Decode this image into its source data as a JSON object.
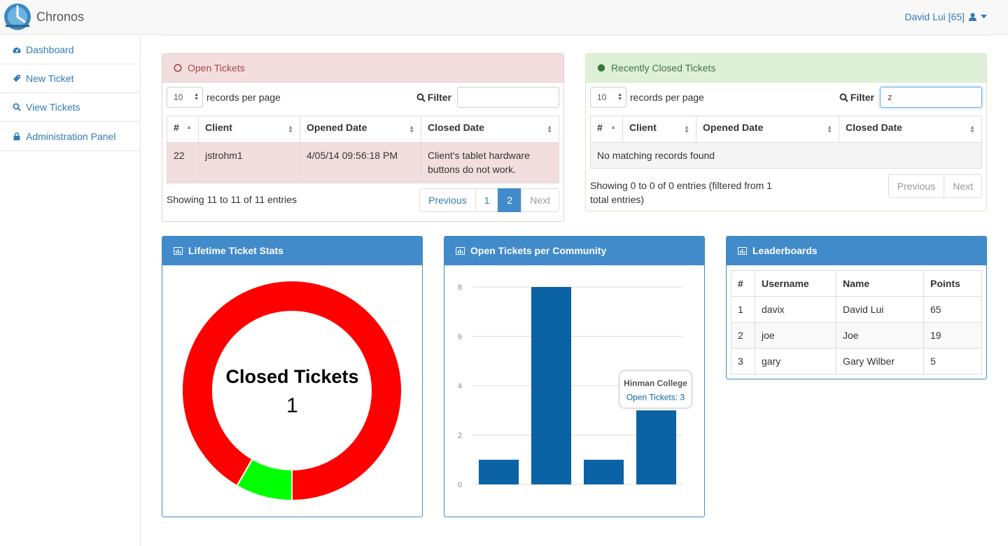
{
  "app": {
    "name": "Chronos",
    "user": "David Lui [65]"
  },
  "sidebar": {
    "items": [
      {
        "label": "Dashboard",
        "icon": "dashboard-icon"
      },
      {
        "label": "New Ticket",
        "icon": "ticket-icon"
      },
      {
        "label": "View Tickets",
        "icon": "search-icon"
      },
      {
        "label": "Administration Panel",
        "icon": "lock-icon"
      }
    ]
  },
  "open_tickets": {
    "title": "Open Tickets",
    "length_value": "10",
    "length_label": "records per page",
    "filter_label": "Filter",
    "filter_value": "",
    "columns": [
      "#",
      "Client",
      "Opened Date",
      "Closed Date"
    ],
    "rows": [
      {
        "id": "22",
        "client": "jstrohm1",
        "opened": "4/05/14 09:56:18 PM",
        "closed": "Client's tablet hardware buttons do not work."
      }
    ],
    "info": "Showing 11 to 11 of 11 entries",
    "pagination": {
      "previous": "Previous",
      "pages": [
        "1",
        "2"
      ],
      "active": "2",
      "next": "Next"
    }
  },
  "closed_tickets": {
    "title": "Recently Closed Tickets",
    "length_value": "10",
    "length_label": "records per page",
    "filter_label": "Filter",
    "filter_value": "z",
    "columns": [
      "#",
      "Client",
      "Opened Date",
      "Closed Date"
    ],
    "empty_message": "No matching records found",
    "info": "Showing 0 to 0 of 0 entries (filtered from 1 total entries)",
    "pagination": {
      "previous": "Previous",
      "next": "Next"
    }
  },
  "stats_panel": {
    "title": "Lifetime Ticket Stats",
    "center_label": "Closed Tickets",
    "center_value": "1"
  },
  "community_panel": {
    "title": "Open Tickets per Community"
  },
  "leaderboard": {
    "title": "Leaderboards",
    "columns": [
      "#",
      "Username",
      "Name",
      "Points"
    ],
    "rows": [
      {
        "rank": "1",
        "username": "davix",
        "name": "David Lui",
        "points": "65"
      },
      {
        "rank": "2",
        "username": "joe",
        "name": "Joe",
        "points": "19"
      },
      {
        "rank": "3",
        "username": "gary",
        "name": "Gary Wilber",
        "points": "5"
      }
    ]
  },
  "colors": {
    "accent": "#428bca",
    "open": "#ff0000",
    "closed": "#00ff00",
    "bar": "#0b62a4"
  },
  "chart_data": [
    {
      "type": "pie",
      "title": "",
      "slices": [
        {
          "label": "Open Tickets",
          "value": 11,
          "color": "#ff0000"
        },
        {
          "label": "Closed Tickets",
          "value": 1,
          "color": "#00ff00"
        }
      ],
      "center_label": "Closed Tickets",
      "center_value": 1
    },
    {
      "type": "bar",
      "title": "",
      "categories": [
        "",
        "",
        "",
        "Hinman College"
      ],
      "series": [
        {
          "name": "Open Tickets",
          "values": [
            1,
            8,
            1,
            3
          ]
        }
      ],
      "ylim": [
        0,
        8
      ],
      "yticks": [
        0,
        2,
        4,
        6,
        8
      ],
      "grid": true,
      "tooltip": {
        "title": "Hinman College",
        "label": "Open Tickets",
        "value": "3"
      }
    }
  ]
}
